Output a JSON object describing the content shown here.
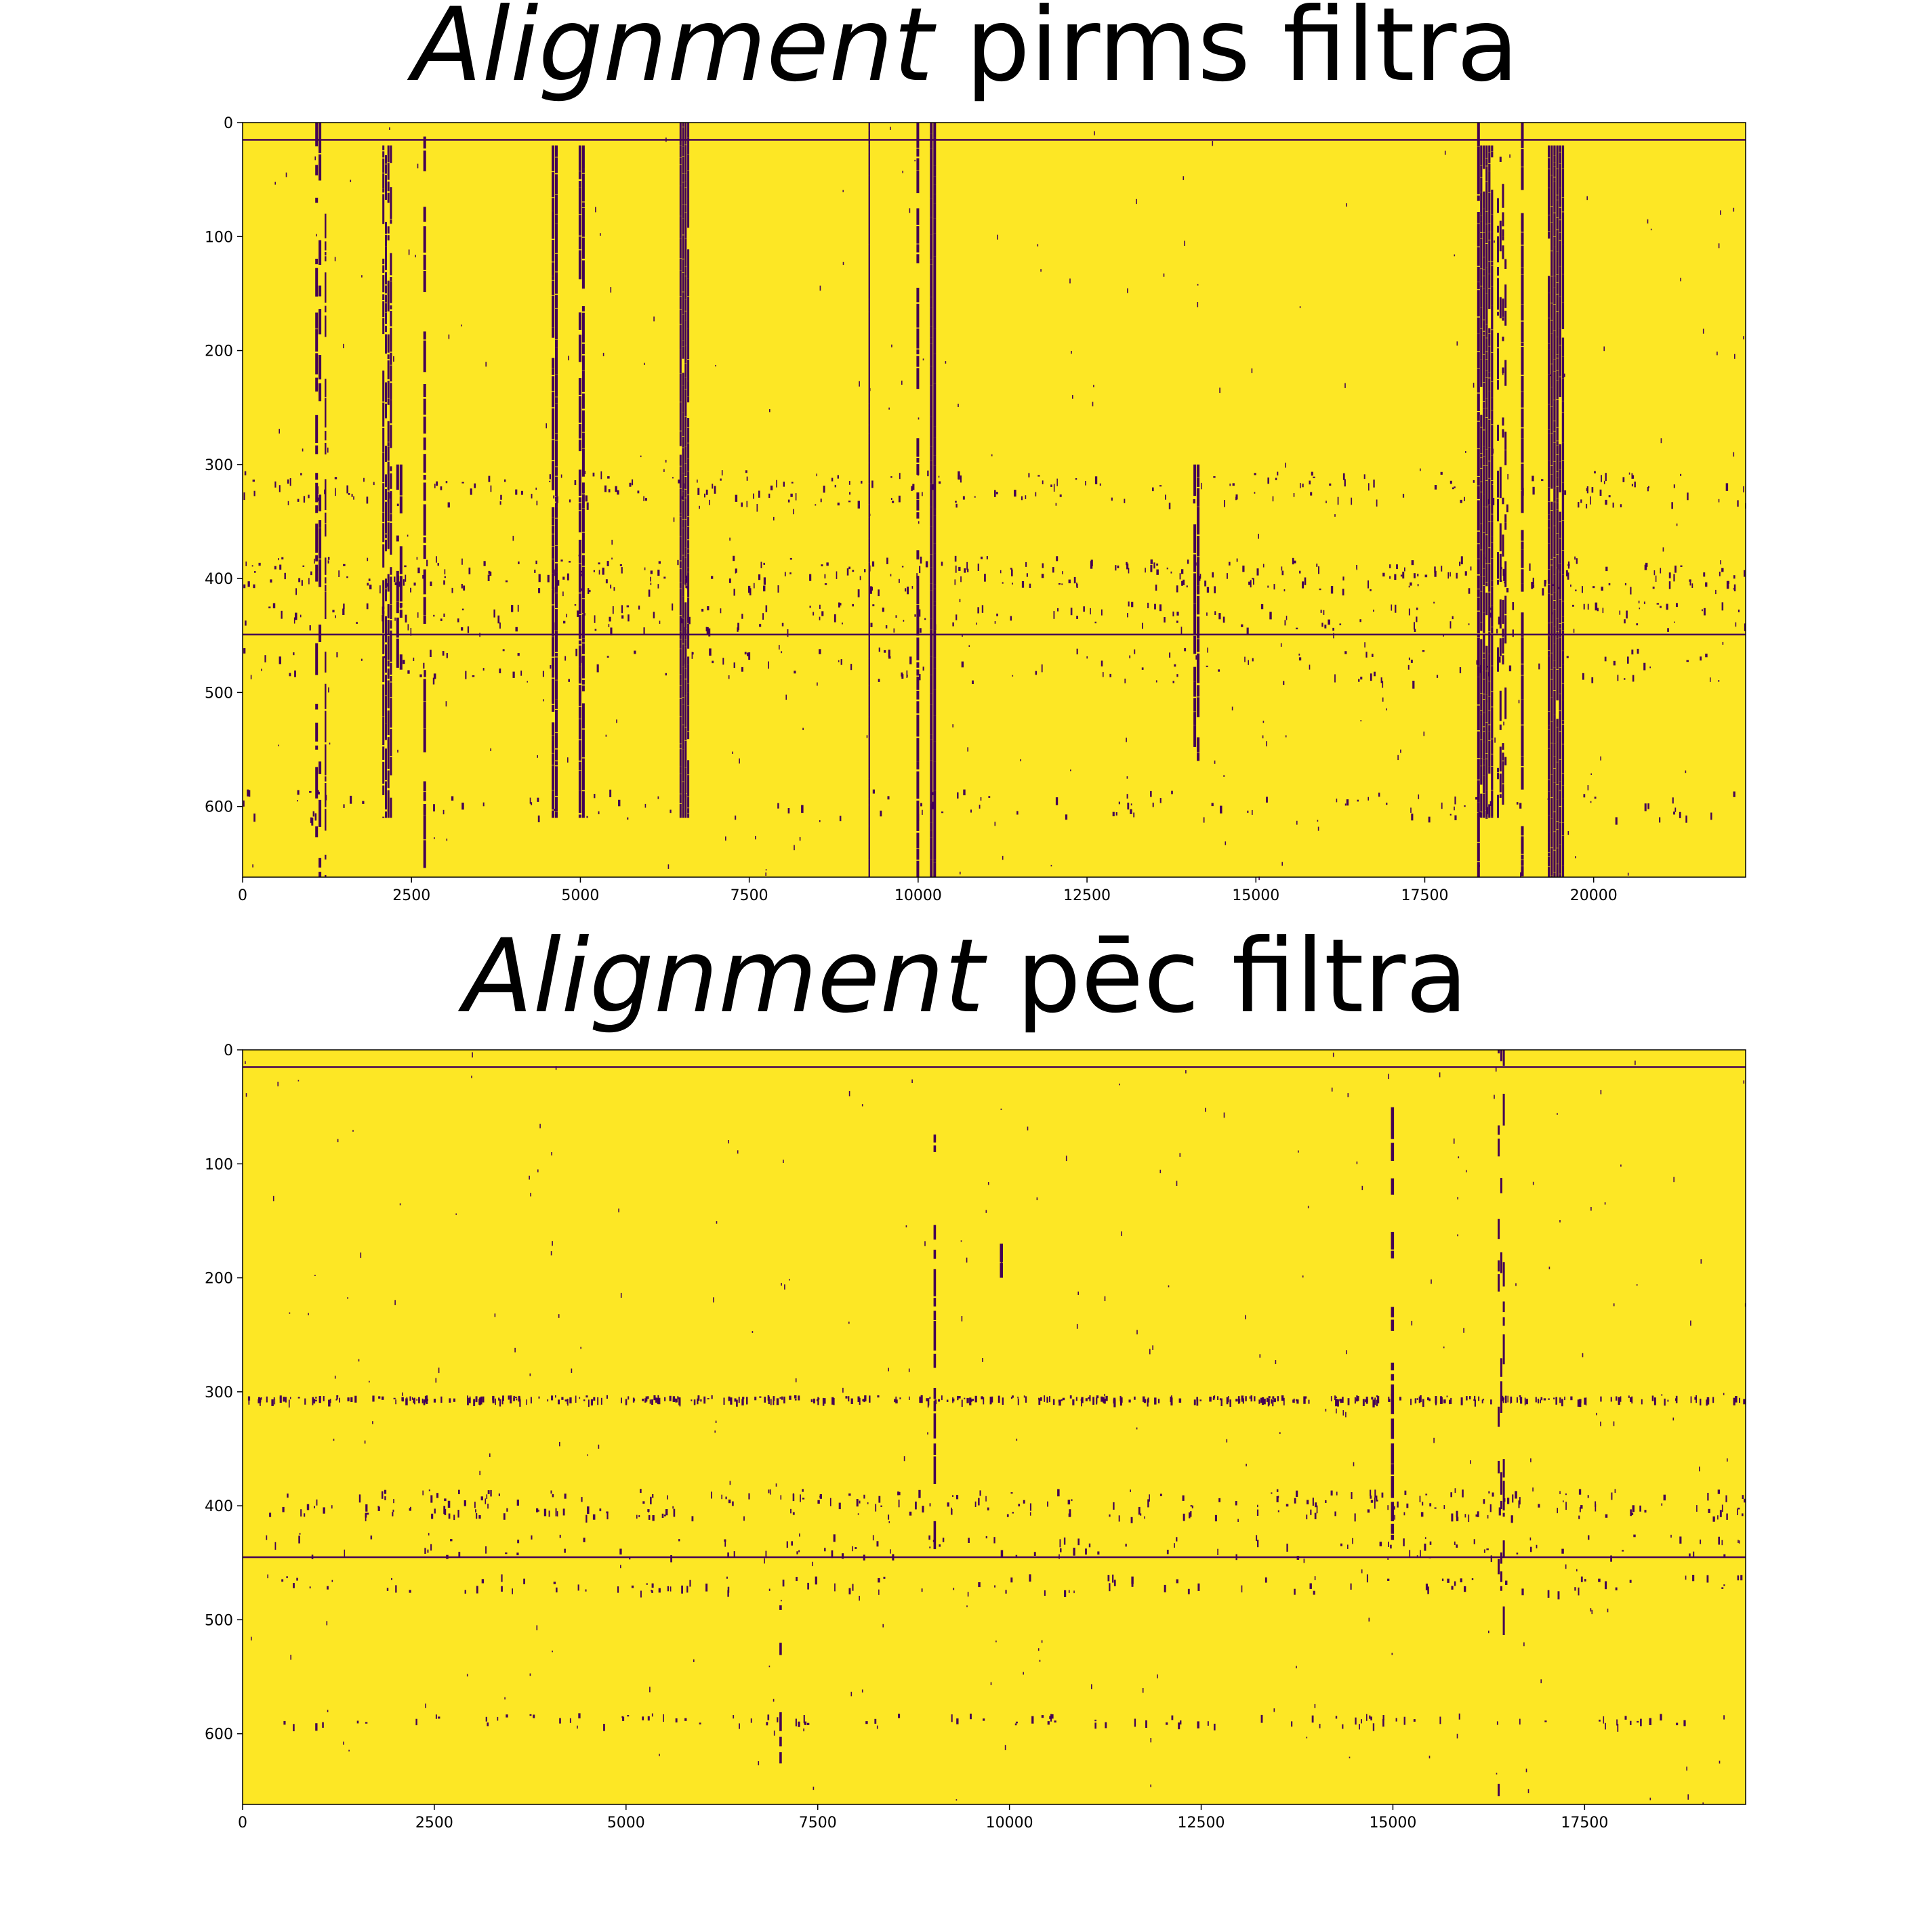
{
  "colors": {
    "background": "#ffffff",
    "match": "#fde725",
    "gap": "#440154",
    "text": "#000000"
  },
  "chart_data": [
    {
      "type": "heatmap",
      "title": {
        "italic": "Alignment",
        "rest": " pirms filtra"
      },
      "xlabel": "",
      "ylabel": "",
      "colormap": "viridis",
      "xlim": [
        0,
        22250
      ],
      "ylim": [
        662,
        0
      ],
      "xticks": [
        0,
        2500,
        5000,
        7500,
        10000,
        12500,
        15000,
        17500,
        20000
      ],
      "yticks": [
        0,
        100,
        200,
        300,
        400,
        500,
        600
      ],
      "grid": false,
      "row_lines": [
        15,
        449
      ],
      "column_bands": [
        {
          "x": [
            1050,
            1150
          ],
          "rows": [
            0,
            662
          ],
          "density": 0.55
        },
        {
          "x": [
            1200,
            1230
          ],
          "rows": [
            80,
            662
          ],
          "density": 0.7
        },
        {
          "x": [
            2050,
            2200
          ],
          "rows": [
            20,
            610
          ],
          "density": 0.8
        },
        {
          "x": [
            2250,
            2350
          ],
          "rows": [
            300,
            480
          ],
          "density": 0.6
        },
        {
          "x": [
            2650,
            2700
          ],
          "rows": [
            0,
            662
          ],
          "density": 0.6
        },
        {
          "x": [
            4550,
            4650
          ],
          "rows": [
            20,
            610
          ],
          "density": 0.9
        },
        {
          "x": [
            4950,
            5050
          ],
          "rows": [
            20,
            610
          ],
          "density": 0.85
        },
        {
          "x": [
            6450,
            6600
          ],
          "rows": [
            0,
            610
          ],
          "density": 0.95
        },
        {
          "x": [
            9250,
            9280
          ],
          "rows": [
            0,
            662
          ],
          "density": 1.0
        },
        {
          "x": [
            9950,
            10000
          ],
          "rows": [
            0,
            662
          ],
          "density": 0.8
        },
        {
          "x": [
            10150,
            10250
          ],
          "rows": [
            0,
            662
          ],
          "density": 1.0
        },
        {
          "x": [
            14050,
            14150
          ],
          "rows": [
            300,
            560
          ],
          "density": 0.8
        },
        {
          "x": [
            18250,
            18300
          ],
          "rows": [
            0,
            662
          ],
          "density": 0.9
        },
        {
          "x": [
            18300,
            18500
          ],
          "rows": [
            20,
            610
          ],
          "density": 0.95
        },
        {
          "x": [
            18550,
            18700
          ],
          "rows": [
            30,
            610
          ],
          "density": 0.55
        },
        {
          "x": [
            18900,
            18950
          ],
          "rows": [
            0,
            662
          ],
          "density": 0.9
        },
        {
          "x": [
            19300,
            19550
          ],
          "rows": [
            20,
            662
          ],
          "density": 0.95
        }
      ],
      "row_bands": [
        {
          "rows": [
            305,
            335
          ],
          "density": 0.25
        },
        {
          "rows": [
            380,
            410
          ],
          "density": 0.35
        },
        {
          "rows": [
            420,
            445
          ],
          "density": 0.2
        },
        {
          "rows": [
            460,
            490
          ],
          "density": 0.15
        },
        {
          "rows": [
            585,
            610
          ],
          "density": 0.12
        }
      ]
    },
    {
      "type": "heatmap",
      "title": {
        "italic": "Alignment",
        "rest": " pēc filtra"
      },
      "xlabel": "",
      "ylabel": "",
      "colormap": "viridis",
      "xlim": [
        0,
        19600
      ],
      "ylim": [
        662,
        0
      ],
      "xticks": [
        0,
        2500,
        5000,
        7500,
        10000,
        12500,
        15000,
        17500
      ],
      "yticks": [
        0,
        100,
        200,
        300,
        400,
        500,
        600
      ],
      "grid": false,
      "row_lines": [
        15,
        445
      ],
      "column_bands": [
        {
          "x": [
            8990,
            9030
          ],
          "rows": [
            60,
            450
          ],
          "density": 0.5
        },
        {
          "x": [
            6980,
            7020
          ],
          "rows": [
            420,
            662
          ],
          "density": 0.4
        },
        {
          "x": [
            14950,
            15000
          ],
          "rows": [
            20,
            430
          ],
          "density": 0.5
        },
        {
          "x": [
            9850,
            9900
          ],
          "rows": [
            170,
            200
          ],
          "density": 0.9
        },
        {
          "x": [
            16350,
            16450
          ],
          "rows": [
            0,
            662
          ],
          "density": 0.25
        }
      ],
      "row_bands": [
        {
          "rows": [
            303,
            307
          ],
          "density": 0.5
        },
        {
          "rows": [
            385,
            410
          ],
          "density": 0.3
        },
        {
          "rows": [
            425,
            445
          ],
          "density": 0.12
        },
        {
          "rows": [
            460,
            475
          ],
          "density": 0.12
        },
        {
          "rows": [
            582,
            592
          ],
          "density": 0.12
        }
      ]
    }
  ]
}
